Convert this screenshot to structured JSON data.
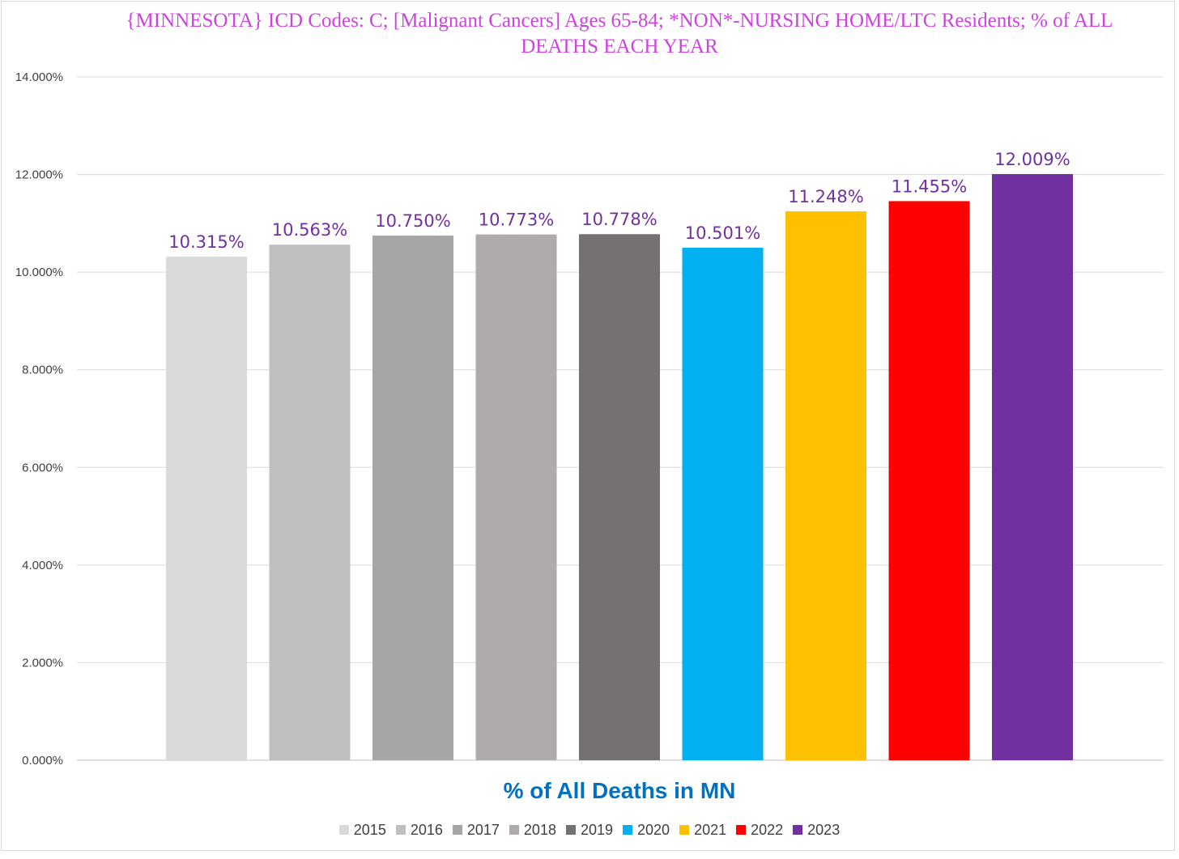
{
  "chart_data": {
    "type": "bar",
    "title": "{MINNESOTA}  ICD Codes: C;  [Malignant Cancers] Ages 65-84; *NON*-NURSING HOME/LTC Residents; % of ALL DEATHS EACH YEAR",
    "xlabel": "% of All Deaths in MN",
    "ylabel": "",
    "ylim": [
      0,
      14
    ],
    "yticks": [
      "0.000%",
      "2.000%",
      "4.000%",
      "6.000%",
      "8.000%",
      "10.000%",
      "12.000%",
      "14.000%"
    ],
    "grid": true,
    "legend_position": "bottom",
    "categories": [
      "2015",
      "2016",
      "2017",
      "2018",
      "2019",
      "2020",
      "2021",
      "2022",
      "2023"
    ],
    "values": [
      10.315,
      10.563,
      10.75,
      10.773,
      10.778,
      10.501,
      11.248,
      11.455,
      12.009
    ],
    "data_labels": [
      "10.315%",
      "10.563%",
      "10.750%",
      "10.773%",
      "10.778%",
      "10.501%",
      "11.248%",
      "11.455%",
      "12.009%"
    ],
    "colors": [
      "#d9d9d9",
      "#bfbfbf",
      "#a6a6a6",
      "#afabab",
      "#767171",
      "#00b0f0",
      "#ffc000",
      "#ff0000",
      "#7030a0"
    ]
  }
}
